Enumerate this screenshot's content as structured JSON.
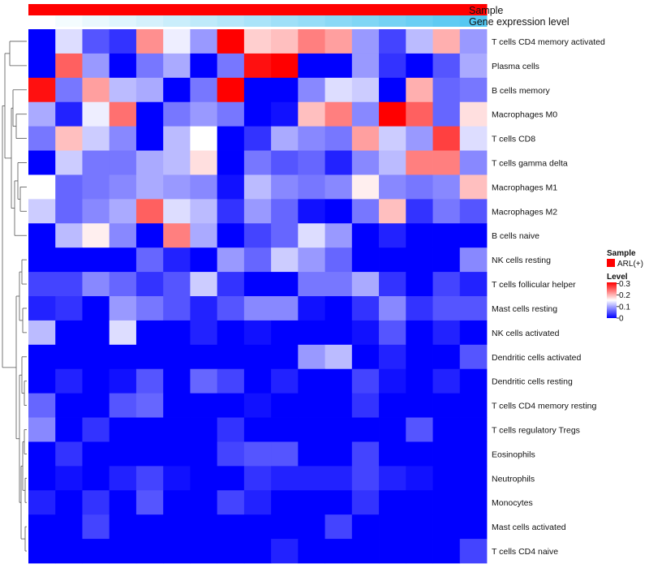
{
  "chart_data": {
    "type": "heatmap",
    "title": "",
    "annotations": [
      {
        "name": "Sample",
        "style": "solid",
        "color": "#ff0000"
      },
      {
        "name": "Gene expression level",
        "style": "gradient",
        "from": "#ffffff",
        "to": "#55c8f2"
      }
    ],
    "rows": [
      "T cells CD4 memory activated",
      "Plasma cells",
      "B cells memory",
      "Macrophages M0",
      "T cells CD8",
      "T cells gamma delta",
      "Macrophages M1",
      "Macrophages M2",
      "B cells naive",
      "NK cells resting",
      "T cells follicular helper",
      "Mast cells resting",
      "NK cells activated",
      "Dendritic cells activated",
      "Dendritic cells resting",
      "T cells CD4 memory resting",
      "T cells regulatory  Tregs",
      "Eosinophils",
      "Neutrophils",
      "Monocytes",
      "Mast cells activated",
      "T cells CD4 naive"
    ],
    "num_columns": 17,
    "values": [
      [
        0.0,
        0.13,
        0.05,
        0.03,
        0.22,
        0.14,
        0.09,
        0.31,
        0.18,
        0.19,
        0.23,
        0.21,
        0.09,
        0.04,
        0.11,
        0.2,
        0.09
      ],
      [
        0.0,
        0.25,
        0.09,
        0.0,
        0.07,
        0.1,
        0.0,
        0.07,
        0.3,
        0.31,
        0.0,
        0.0,
        0.09,
        0.03,
        0.0,
        0.05,
        0.1
      ],
      [
        0.3,
        0.07,
        0.21,
        0.11,
        0.1,
        0.0,
        0.07,
        0.31,
        0.0,
        0.0,
        0.08,
        0.13,
        0.12,
        0.0,
        0.2,
        0.06,
        0.07
      ],
      [
        0.1,
        0.02,
        0.14,
        0.24,
        0.0,
        0.07,
        0.09,
        0.07,
        0.0,
        0.01,
        0.19,
        0.23,
        0.08,
        0.31,
        0.25,
        0.06,
        0.17
      ],
      [
        0.07,
        0.19,
        0.12,
        0.08,
        0.0,
        0.11,
        0.15,
        0.0,
        0.03,
        0.1,
        0.08,
        0.07,
        0.21,
        0.12,
        0.09,
        0.27,
        0.13
      ],
      [
        0.0,
        0.12,
        0.07,
        0.07,
        0.1,
        0.11,
        0.17,
        0.0,
        0.07,
        0.05,
        0.06,
        0.02,
        0.08,
        0.11,
        0.23,
        0.23,
        0.08
      ],
      [
        0.15,
        0.06,
        0.07,
        0.08,
        0.1,
        0.09,
        0.08,
        0.01,
        0.11,
        0.08,
        0.07,
        0.08,
        0.16,
        0.08,
        0.07,
        0.08,
        0.19
      ],
      [
        0.12,
        0.06,
        0.08,
        0.1,
        0.25,
        0.13,
        0.11,
        0.03,
        0.09,
        0.06,
        0.01,
        0.0,
        0.07,
        0.19,
        0.03,
        0.07,
        0.05
      ],
      [
        0.0,
        0.11,
        0.16,
        0.08,
        0.0,
        0.23,
        0.1,
        0.0,
        0.04,
        0.06,
        0.13,
        0.09,
        0.0,
        0.02,
        0.0,
        0.0,
        0.0
      ],
      [
        0.0,
        0.0,
        0.0,
        0.0,
        0.06,
        0.02,
        0.0,
        0.09,
        0.06,
        0.12,
        0.09,
        0.06,
        0.0,
        0.0,
        0.0,
        0.0,
        0.08
      ],
      [
        0.04,
        0.04,
        0.08,
        0.06,
        0.03,
        0.05,
        0.12,
        0.03,
        0.0,
        0.0,
        0.07,
        0.07,
        0.1,
        0.03,
        0.0,
        0.04,
        0.02
      ],
      [
        0.02,
        0.03,
        0.0,
        0.09,
        0.07,
        0.05,
        0.02,
        0.05,
        0.08,
        0.08,
        0.01,
        0.0,
        0.03,
        0.08,
        0.03,
        0.05,
        0.05
      ],
      [
        0.11,
        0.0,
        0.0,
        0.13,
        0.0,
        0.0,
        0.02,
        0.0,
        0.01,
        0.0,
        0.0,
        0.0,
        0.01,
        0.05,
        0.0,
        0.02,
        0.0
      ],
      [
        0.0,
        0.0,
        0.0,
        0.0,
        0.0,
        0.0,
        0.0,
        0.0,
        0.0,
        0.0,
        0.09,
        0.11,
        0.0,
        0.02,
        0.0,
        0.0,
        0.05
      ],
      [
        0.0,
        0.02,
        0.0,
        0.01,
        0.05,
        0.0,
        0.06,
        0.04,
        0.0,
        0.02,
        0.0,
        0.0,
        0.04,
        0.01,
        0.0,
        0.02,
        0.0
      ],
      [
        0.06,
        0.0,
        0.0,
        0.05,
        0.06,
        0.0,
        0.0,
        0.0,
        0.01,
        0.0,
        0.0,
        0.0,
        0.03,
        0.0,
        0.0,
        0.0,
        0.0
      ],
      [
        0.08,
        0.0,
        0.03,
        0.0,
        0.0,
        0.0,
        0.0,
        0.03,
        0.0,
        0.0,
        0.0,
        0.0,
        0.0,
        0.0,
        0.05,
        0.0,
        0.0
      ],
      [
        0.0,
        0.03,
        0.0,
        0.0,
        0.0,
        0.0,
        0.0,
        0.04,
        0.05,
        0.05,
        0.0,
        0.0,
        0.04,
        0.0,
        0.0,
        0.0,
        0.0
      ],
      [
        0.0,
        0.01,
        0.0,
        0.02,
        0.04,
        0.01,
        0.0,
        0.0,
        0.03,
        0.02,
        0.02,
        0.02,
        0.04,
        0.02,
        0.01,
        0.0,
        0.0
      ],
      [
        0.02,
        0.0,
        0.03,
        0.0,
        0.05,
        0.0,
        0.0,
        0.04,
        0.02,
        0.0,
        0.0,
        0.0,
        0.03,
        0.0,
        0.0,
        0.0,
        0.0
      ],
      [
        0.0,
        0.0,
        0.04,
        0.0,
        0.0,
        0.0,
        0.0,
        0.0,
        0.0,
        0.0,
        0.0,
        0.04,
        0.0,
        0.0,
        0.0,
        0.0,
        0.0
      ],
      [
        0.0,
        0.0,
        0.0,
        0.0,
        0.0,
        0.0,
        0.0,
        0.0,
        0.0,
        0.02,
        0.0,
        0.0,
        0.0,
        0.0,
        0.0,
        0.0,
        0.04
      ]
    ],
    "color_scale": {
      "min": 0,
      "mid": 0.15,
      "max": 0.31,
      "low": "#0000ff",
      "midColor": "#ffffff",
      "high": "#ff0000"
    },
    "legend": {
      "sample_title": "Sample",
      "sample_entry": "ARL(+)",
      "sample_color": "#ff0000",
      "level_title": "Level",
      "level_ticks": [
        {
          "value": 0.3,
          "label": "0.3"
        },
        {
          "value": 0.2,
          "label": "0.2"
        },
        {
          "value": 0.1,
          "label": "0.1"
        },
        {
          "value": 0,
          "label": "0"
        }
      ],
      "placement": "right"
    },
    "dendrogram": "row clustering tree on left side"
  }
}
